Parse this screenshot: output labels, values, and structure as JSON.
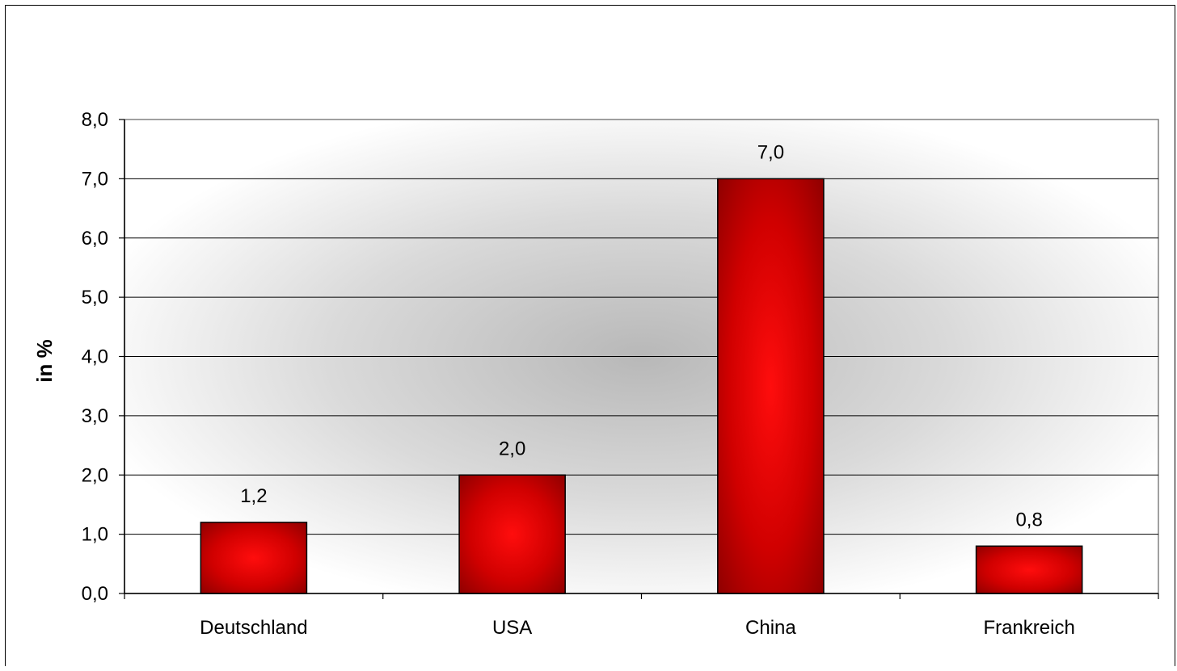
{
  "chart_data": {
    "type": "bar",
    "title": "",
    "xlabel": "",
    "ylabel": "in %",
    "categories": [
      "Deutschland",
      "USA",
      "China",
      "Frankreich"
    ],
    "values": [
      1.2,
      2.0,
      7.0,
      0.8
    ],
    "data_labels": [
      "1,2",
      "2,0",
      "7,0",
      "0,8"
    ],
    "ylim": [
      0,
      8
    ],
    "y_ticks": [
      0,
      1,
      2,
      3,
      4,
      5,
      6,
      7,
      8
    ],
    "y_tick_labels": [
      "0,0",
      "1,0",
      "2,0",
      "3,0",
      "4,0",
      "5,0",
      "6,0",
      "7,0",
      "8,0"
    ],
    "grid": true,
    "legend": "none",
    "colors": {
      "bar_center": "#ff0d0d",
      "bar_edge": "#8b0000",
      "plot_bg_center": "#b8b8b8",
      "plot_bg_edge": "#ffffff",
      "gridline": "#000000"
    }
  }
}
